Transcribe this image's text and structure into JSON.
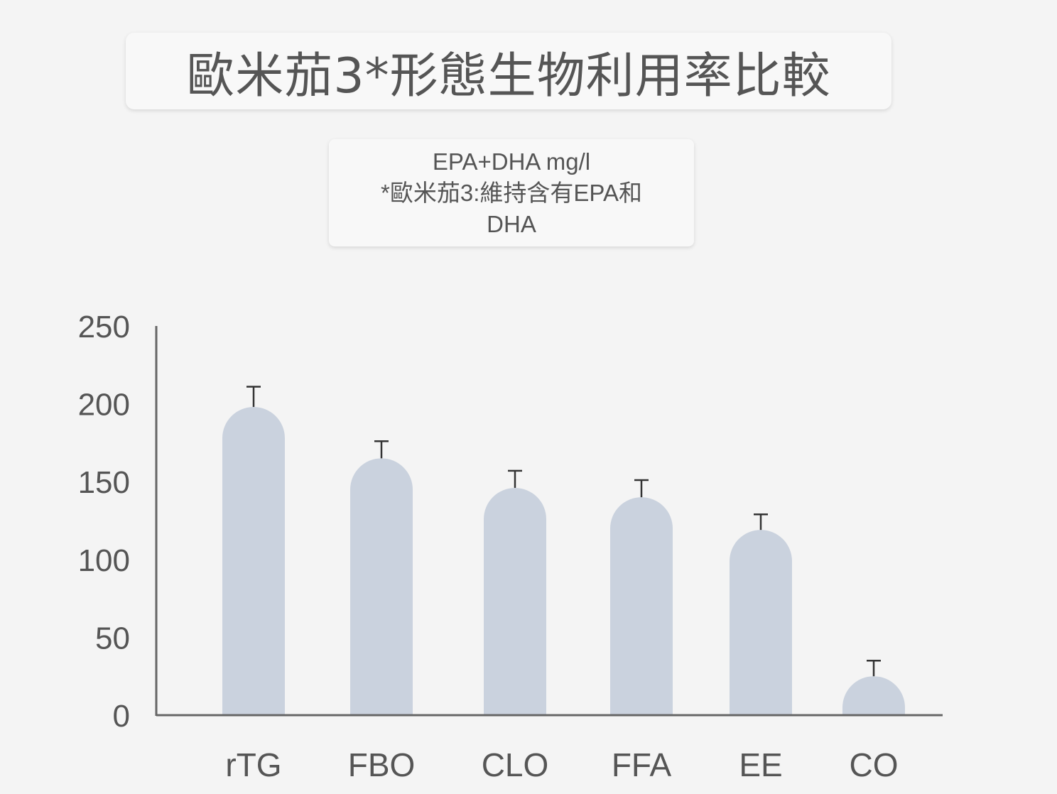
{
  "title": "歐米茄3*形態生物利用率比較",
  "subtitle_lines": [
    "EPA+DHA mg/l",
    "*歐米茄3:維持含有EPA和",
    "DHA"
  ],
  "colors": {
    "bar": "#cad2de",
    "axis": "#666666",
    "text": "#555555",
    "card": "#f8f8f8"
  },
  "chart_data": {
    "type": "bar",
    "categories": [
      "rTG",
      "FBO",
      "CLO",
      "FFA",
      "EE",
      "CO"
    ],
    "values": [
      198,
      165,
      146,
      140,
      119,
      25
    ],
    "error_upper": [
      211,
      176,
      157,
      151,
      129,
      35
    ],
    "ylim": [
      0,
      250
    ],
    "yticks": [
      0,
      50,
      100,
      150,
      200,
      250
    ],
    "xlabel": "",
    "ylabel": "",
    "grid": false,
    "error_bars": true
  }
}
